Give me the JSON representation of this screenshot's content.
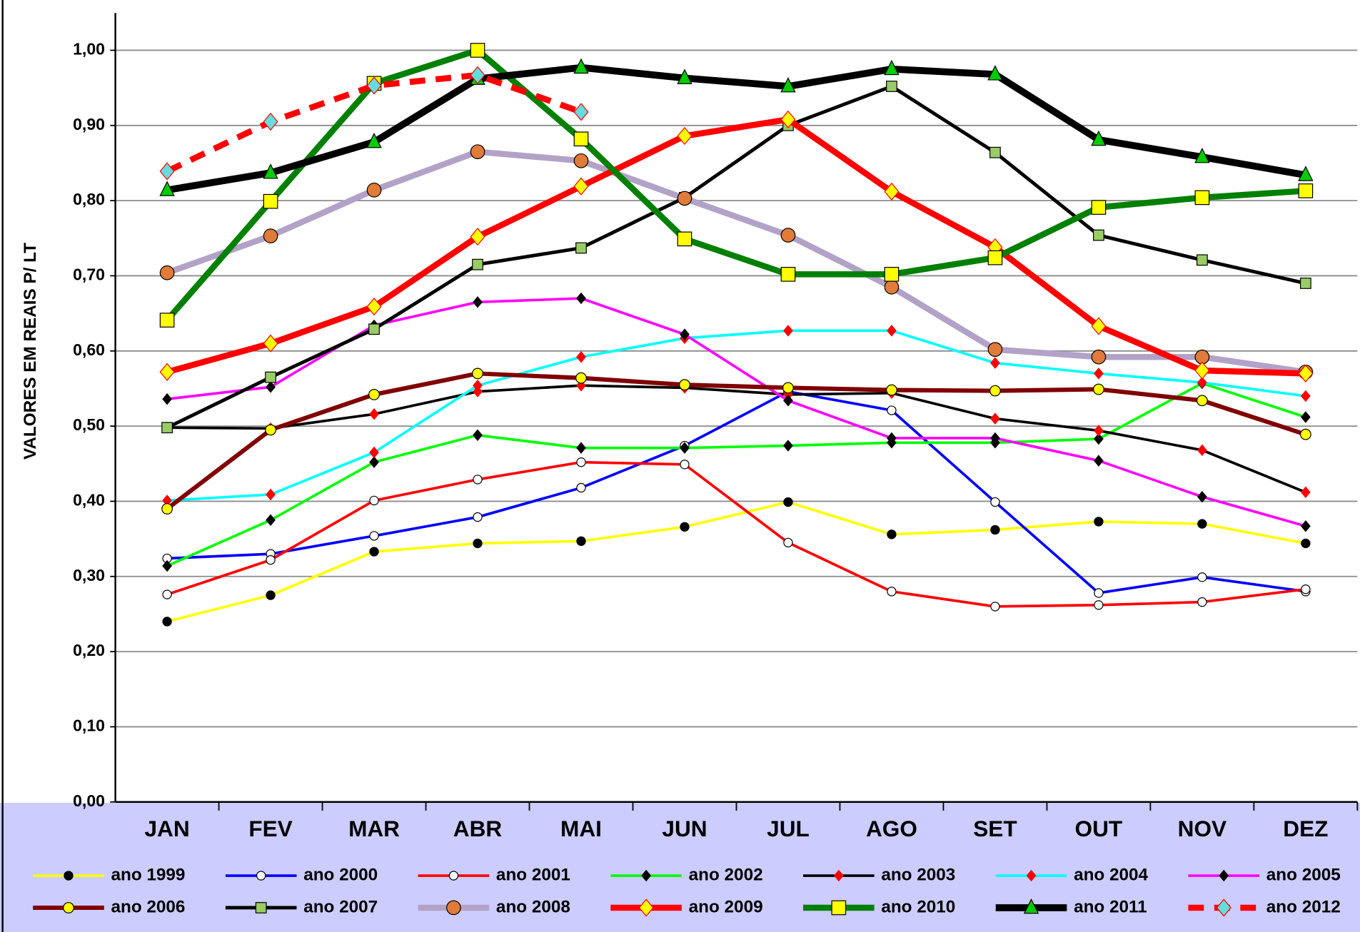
{
  "chart_data": {
    "type": "line",
    "y_label": "VALORES EM REAIS P/ LT",
    "categories": [
      "JAN",
      "FEV",
      "MAR",
      "ABR",
      "MAI",
      "JUN",
      "JUL",
      "AGO",
      "SET",
      "OUT",
      "NOV",
      "DEZ"
    ],
    "ylim": [
      0,
      1.0
    ],
    "yticks": [
      {
        "value": 0,
        "label": "0,00"
      },
      {
        "value": 0.1,
        "label": "0,10"
      },
      {
        "value": 0.2,
        "label": "0,20"
      },
      {
        "value": 0.3,
        "label": "0,30"
      },
      {
        "value": 0.4,
        "label": "0,40"
      },
      {
        "value": 0.5,
        "label": "0,50"
      },
      {
        "value": 0.6,
        "label": "0,60"
      },
      {
        "value": 0.7,
        "label": "0,70"
      },
      {
        "value": 0.8,
        "label": "0,80"
      },
      {
        "value": 0.9,
        "label": "0,90"
      },
      {
        "value": 1.0,
        "label": "1,00"
      }
    ],
    "grid": true,
    "legend": "bottom",
    "series": [
      {
        "name": "ano 1999",
        "color": "#ffff00",
        "marker": "circle",
        "marker_color": "#000000",
        "line_width": 3,
        "values": [
          0.24,
          0.275,
          0.333,
          0.344,
          0.347,
          0.366,
          0.399,
          0.356,
          0.362,
          0.373,
          0.37,
          0.344
        ]
      },
      {
        "name": "ano 2000",
        "color": "#0000ff",
        "marker": "circle",
        "marker_color": "#ffffff",
        "line_width": 3,
        "values": [
          0.324,
          0.33,
          0.354,
          0.379,
          0.418,
          0.474,
          0.546,
          0.521,
          0.399,
          0.278,
          0.299,
          0.28
        ]
      },
      {
        "name": "ano 2001",
        "color": "#ff0000",
        "marker": "circle",
        "marker_color": "#ffffff",
        "line_width": 3,
        "values": [
          0.276,
          0.322,
          0.401,
          0.429,
          0.452,
          0.449,
          0.345,
          0.28,
          0.26,
          0.262,
          0.266,
          0.283
        ]
      },
      {
        "name": "ano 2002",
        "color": "#00ff00",
        "marker": "diamond",
        "marker_color": "#000000",
        "line_width": 3,
        "values": [
          0.314,
          0.375,
          0.452,
          0.488,
          0.471,
          0.471,
          0.474,
          0.478,
          0.478,
          0.483,
          0.557,
          0.512
        ]
      },
      {
        "name": "ano 2003",
        "color": "#000000",
        "marker": "diamond",
        "marker_color": "#ff0000",
        "line_width": 3,
        "values": [
          0.498,
          0.497,
          0.516,
          0.546,
          0.554,
          0.551,
          0.542,
          0.544,
          0.51,
          0.494,
          0.468,
          0.412
        ]
      },
      {
        "name": "ano 2004",
        "color": "#00ffff",
        "marker": "diamond",
        "marker_color": "#ff0000",
        "line_width": 3,
        "values": [
          0.401,
          0.409,
          0.465,
          0.554,
          0.592,
          0.617,
          0.627,
          0.627,
          0.584,
          0.57,
          0.558,
          0.54
        ]
      },
      {
        "name": "ano 2005",
        "color": "#ff00ff",
        "marker": "diamond",
        "marker_color": "#000000",
        "line_width": 3,
        "values": [
          0.536,
          0.552,
          0.634,
          0.665,
          0.67,
          0.622,
          0.534,
          0.484,
          0.484,
          0.454,
          0.406,
          0.367
        ]
      },
      {
        "name": "ano 2006",
        "color": "#800000",
        "marker": "circle",
        "marker_color": "#ffff00",
        "line_width": 5,
        "values": [
          0.39,
          0.495,
          0.542,
          0.57,
          0.564,
          0.555,
          0.551,
          0.548,
          0.547,
          0.549,
          0.534,
          0.489
        ]
      },
      {
        "name": "ano 2007",
        "color": "#000000",
        "marker": "square",
        "marker_color": "#99cc66",
        "line_width": 4,
        "values": [
          0.498,
          0.565,
          0.629,
          0.715,
          0.737,
          0.804,
          0.9,
          0.952,
          0.864,
          0.754,
          0.721,
          0.69
        ]
      },
      {
        "name": "ano 2008",
        "color": "#b3a2c7",
        "marker": "circle",
        "marker_color": "#e07b39",
        "line_width": 7,
        "values": [
          0.704,
          0.753,
          0.814,
          0.865,
          0.853,
          0.803,
          0.754,
          0.685,
          0.602,
          0.592,
          0.592,
          0.572
        ]
      },
      {
        "name": "ano 2009",
        "color": "#ff0000",
        "marker": "diamond",
        "marker_color": "#ffff00",
        "line_width": 7,
        "values": [
          0.572,
          0.61,
          0.659,
          0.752,
          0.819,
          0.886,
          0.908,
          0.812,
          0.738,
          0.633,
          0.574,
          0.57
        ]
      },
      {
        "name": "ano 2010",
        "color": "#008000",
        "marker": "square",
        "marker_color": "#ffff00",
        "line_width": 7,
        "values": [
          0.641,
          0.799,
          0.956,
          1.0,
          0.882,
          0.749,
          0.702,
          0.702,
          0.724,
          0.791,
          0.804,
          0.813
        ]
      },
      {
        "name": "ano 2011",
        "color": "#000000",
        "marker": "triangle",
        "marker_color": "#00cc00",
        "line_width": 8,
        "values": [
          0.814,
          0.837,
          0.878,
          0.962,
          0.977,
          0.963,
          0.952,
          0.975,
          0.968,
          0.881,
          0.858,
          0.834
        ]
      },
      {
        "name": "ano 2012",
        "color": "#ff0000",
        "marker": "diamond",
        "marker_color": "#66dddd",
        "line_width": 7,
        "dashed": true,
        "values": [
          0.839,
          0.905,
          0.953,
          0.967,
          0.918,
          null,
          null,
          null,
          null,
          null,
          null,
          null
        ]
      }
    ]
  }
}
